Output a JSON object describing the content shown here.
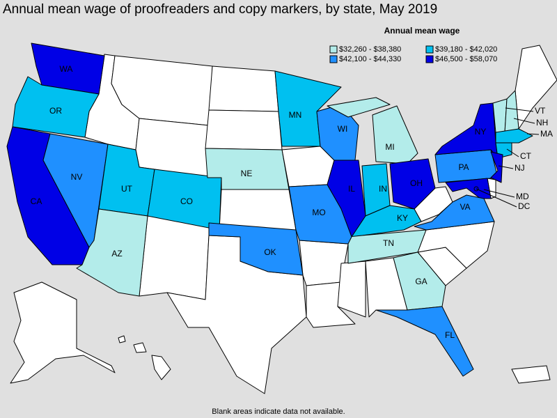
{
  "title": "Annual mean wage of proofreaders and copy markers, by state, May 2019",
  "legend": {
    "title": "Annual mean wage",
    "entries": [
      {
        "label": "$32,260 - $38,380",
        "color": "#b3ecea"
      },
      {
        "label": "$39,180 - $42,020",
        "color": "#00c0f0"
      },
      {
        "label": "$42,100 - $44,330",
        "color": "#1f90ff"
      },
      {
        "label": "$46,500 - $58,070",
        "color": "#0000e6"
      }
    ]
  },
  "states": [
    {
      "label": "WA",
      "bin": 3
    },
    {
      "label": "OR",
      "bin": 1
    },
    {
      "label": "CA",
      "bin": 3
    },
    {
      "label": "NV",
      "bin": 2
    },
    {
      "label": "UT",
      "bin": 1
    },
    {
      "label": "AZ",
      "bin": 0
    },
    {
      "label": "CO",
      "bin": 1
    },
    {
      "label": "NE",
      "bin": 0
    },
    {
      "label": "MN",
      "bin": 1
    },
    {
      "label": "WI",
      "bin": 2
    },
    {
      "label": "MI",
      "bin": 0
    },
    {
      "label": "IL",
      "bin": 3
    },
    {
      "label": "IN",
      "bin": 1
    },
    {
      "label": "OH",
      "bin": 3
    },
    {
      "label": "KY",
      "bin": 1
    },
    {
      "label": "TN",
      "bin": 0
    },
    {
      "label": "MO",
      "bin": 2
    },
    {
      "label": "OK",
      "bin": 2
    },
    {
      "label": "GA",
      "bin": 0
    },
    {
      "label": "FL",
      "bin": 2
    },
    {
      "label": "PA",
      "bin": 2
    },
    {
      "label": "NY",
      "bin": 3
    },
    {
      "label": "VT",
      "bin": 0
    },
    {
      "label": "NH",
      "bin": 0
    },
    {
      "label": "MA",
      "bin": 1
    },
    {
      "label": "CT",
      "bin": 1
    },
    {
      "label": "NJ",
      "bin": 3
    },
    {
      "label": "MD",
      "bin": 3
    },
    {
      "label": "DC",
      "bin": 3
    },
    {
      "label": "VA",
      "bin": 2
    }
  ],
  "note": "Blank areas indicate data not available."
}
